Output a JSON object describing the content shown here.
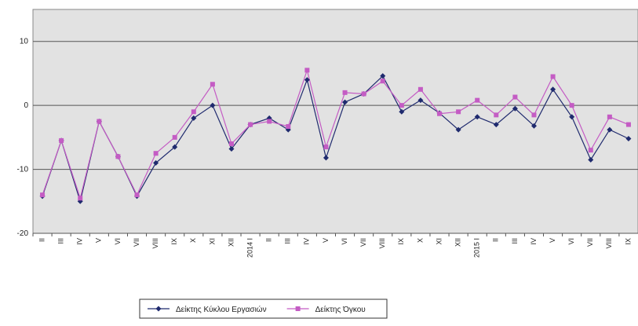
{
  "chart_data": {
    "type": "line",
    "categories": [
      "II",
      "III",
      "IV",
      "V",
      "VI",
      "VII",
      "VIII",
      "IX",
      "X",
      "XI",
      "XII",
      "2014 I",
      "II",
      "III",
      "IV",
      "V",
      "VI",
      "VII",
      "VIII",
      "IX",
      "X",
      "XI",
      "XII",
      "2015 I",
      "II",
      "III",
      "IV",
      "V",
      "VI",
      "VII",
      "VIII",
      "IX"
    ],
    "series": [
      {
        "name": "Δείκτης Κύκλου Εργασιών",
        "color": "#1f2a6e",
        "marker": "diamond",
        "values": [
          -14.2,
          -5.5,
          -15,
          -2.5,
          -8,
          -14.2,
          -9,
          -6.5,
          -2,
          0,
          -6.8,
          -3,
          -2,
          -3.8,
          4,
          -8.2,
          0.5,
          1.8,
          4.6,
          -1,
          0.8,
          -1.2,
          -3.8,
          -1.8,
          -3,
          -0.5,
          -3.2,
          2.5,
          -1.8,
          -8.5,
          -3.8,
          -5.2
        ]
      },
      {
        "name": "Δείκτης Όγκου",
        "color": "#c45cc4",
        "marker": "square",
        "values": [
          -14,
          -5.5,
          -14.5,
          -2.5,
          -8,
          -14,
          -7.5,
          -5,
          -1,
          3.3,
          -6,
          -3,
          -2.5,
          -3.3,
          5.5,
          -6.5,
          2,
          1.8,
          3.8,
          0,
          2.5,
          -1.3,
          -1,
          0.8,
          -1.5,
          1.3,
          -1.5,
          4.5,
          0,
          -7,
          -1.8,
          -3
        ]
      }
    ],
    "ylim": [
      -20,
      15
    ],
    "yticks": [
      -20,
      -10,
      0,
      10
    ],
    "grid": true,
    "legend": "bottom"
  }
}
